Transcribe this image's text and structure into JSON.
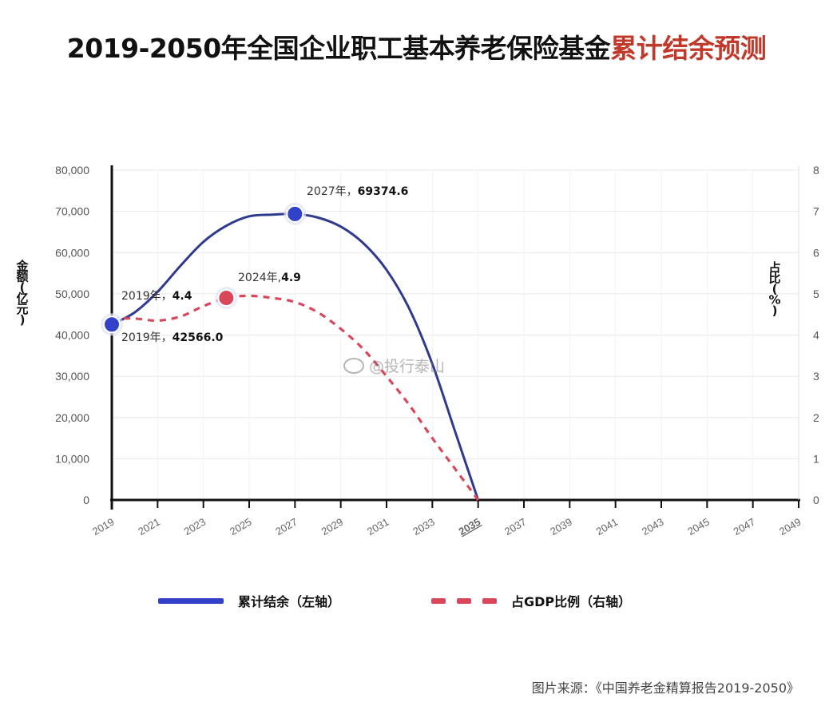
{
  "title": {
    "main": "2019-2050年全国企业职工基本养老保险基金",
    "accent": "累计结余预测"
  },
  "watermark": "@投行泰山",
  "source": "图片来源：《中国养老金精算报告2019-2050》",
  "legend": {
    "series1": "累计结余（左轴）",
    "series2": "占GDP比例（右轴）"
  },
  "colors": {
    "series1": "#3340c8",
    "series2": "#d9475a",
    "accent": "#c0392b"
  },
  "annotations": {
    "a1": {
      "prefix": "2027年，",
      "value": "69374.6"
    },
    "a2": {
      "prefix": "2024年,",
      "value": "4.9"
    },
    "a3": {
      "prefix": "2019年，",
      "value": "4.4"
    },
    "a4": {
      "prefix": "2019年，",
      "value": "42566.0"
    }
  },
  "chart_data": {
    "type": "line",
    "ylabel_left": [
      "金",
      "额",
      "(",
      "亿",
      "元",
      ")"
    ],
    "ylabel_right": [
      "占",
      "比",
      "(",
      "%",
      ")"
    ],
    "ylim_left": [
      0,
      80000
    ],
    "ylim_right": [
      0,
      8
    ],
    "xlim": [
      2019,
      2049
    ],
    "left_ticks": [
      "0",
      "10,000",
      "20,000",
      "30,000",
      "40,000",
      "50,000",
      "60,000",
      "70,000",
      "80,000"
    ],
    "right_ticks": [
      "0",
      "1",
      "2",
      "3",
      "4",
      "5",
      "6",
      "7",
      "8"
    ],
    "x_ticks": [
      "2019",
      "2021",
      "2023",
      "2025",
      "2027",
      "2029",
      "2031",
      "2033",
      "2035",
      "2037",
      "2039",
      "2041",
      "2043",
      "2045",
      "2047",
      "2049"
    ],
    "highlight_x_tick": "2035",
    "series": [
      {
        "name": "累计结余（左轴）",
        "axis": "left",
        "style": "solid",
        "x": [
          2019,
          2020,
          2021,
          2022,
          2023,
          2024,
          2025,
          2026,
          2027,
          2028,
          2029,
          2030,
          2031,
          2032,
          2033,
          2034,
          2035
        ],
        "values": [
          42566.0,
          45500,
          50500,
          56800,
          62600,
          66500,
          68800,
          69200,
          69374.6,
          68500,
          66300,
          62200,
          55800,
          46300,
          33000,
          16500,
          0
        ]
      },
      {
        "name": "占GDP比例（右轴）",
        "axis": "right",
        "style": "dashed",
        "x": [
          2019,
          2020,
          2021,
          2022,
          2023,
          2024,
          2025,
          2026,
          2027,
          2028,
          2029,
          2030,
          2031,
          2032,
          2033,
          2034,
          2035
        ],
        "values": [
          4.4,
          4.4,
          4.35,
          4.45,
          4.7,
          4.9,
          4.95,
          4.9,
          4.8,
          4.55,
          4.15,
          3.65,
          3.0,
          2.3,
          1.5,
          0.75,
          0
        ]
      }
    ],
    "markers": [
      {
        "series": 0,
        "x": 2027,
        "y": 69374.6
      },
      {
        "series": 0,
        "x": 2019,
        "y": 42566.0
      },
      {
        "series": 1,
        "x": 2024,
        "y": 4.9
      }
    ]
  }
}
